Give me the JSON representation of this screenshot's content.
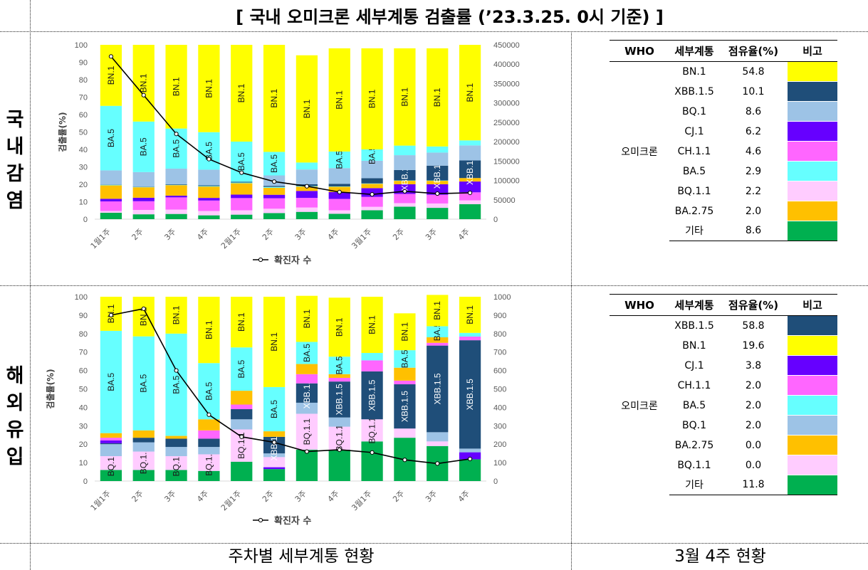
{
  "title": "[ 국내 오미크론 세부계통 검출률 (’23.3.25. 0시 기준) ]",
  "side_domestic": [
    "국",
    "내",
    "감",
    "염"
  ],
  "side_overseas": [
    "해",
    "외",
    "유",
    "입"
  ],
  "footer_left": "주차별 세부계통 현황",
  "footer_right": "3월 4주 현황",
  "colors": {
    "BN.1": "#FFFF00",
    "XBB.1.5": "#1F4E79",
    "BQ.1": "#9DC3E6",
    "CJ.1": "#6600FF",
    "CH.1.1": "#FF66FF",
    "BA.5": "#66FFFF",
    "BQ.1.1": "#FFCCFF",
    "BA.2.75": "#FFC000",
    "기타": "#00B050"
  },
  "table_headers": {
    "who": "WHO",
    "lineage": "세부계통",
    "share": "점유율(%)",
    "note": "비고"
  },
  "domestic_table": {
    "who": "오미크론",
    "rows": [
      {
        "lineage": "BN.1",
        "share": "54.8"
      },
      {
        "lineage": "XBB.1.5",
        "share": "10.1"
      },
      {
        "lineage": "BQ.1",
        "share": "8.6"
      },
      {
        "lineage": "CJ.1",
        "share": "6.2"
      },
      {
        "lineage": "CH.1.1",
        "share": "4.6"
      },
      {
        "lineage": "BA.5",
        "share": "2.9"
      },
      {
        "lineage": "BQ.1.1",
        "share": "2.2"
      },
      {
        "lineage": "BA.2.75",
        "share": "2.0"
      },
      {
        "lineage": "기타",
        "share": "8.6"
      }
    ]
  },
  "overseas_table": {
    "who": "오미크론",
    "rows": [
      {
        "lineage": "XBB.1.5",
        "share": "58.8"
      },
      {
        "lineage": "BN.1",
        "share": "19.6"
      },
      {
        "lineage": "CJ.1",
        "share": "3.8"
      },
      {
        "lineage": "CH.1.1",
        "share": "2.0"
      },
      {
        "lineage": "BA.5",
        "share": "2.0"
      },
      {
        "lineage": "BQ.1",
        "share": "2.0"
      },
      {
        "lineage": "BA.2.75",
        "share": "0.0"
      },
      {
        "lineage": "BQ.1.1",
        "share": "0.0"
      },
      {
        "lineage": "기타",
        "share": "11.8"
      }
    ]
  },
  "chart_data": [
    {
      "type": "bar",
      "stacked": true,
      "categories": [
        "1월1주",
        "2주",
        "3주",
        "4주",
        "2월1주",
        "2주",
        "3주",
        "4주",
        "3월1주",
        "2주",
        "3주",
        "4주"
      ],
      "ylabel": "검출률(%)",
      "ylim": [
        0,
        100
      ],
      "y2lim": [
        0,
        450000
      ],
      "y2ticks": [
        0,
        50000,
        100000,
        150000,
        200000,
        250000,
        300000,
        350000,
        400000,
        450000
      ],
      "legend": "확진자 수",
      "legend_position": "bottom",
      "series": [
        {
          "name": "기타",
          "values": [
            3.7,
            2.8,
            3.0,
            2.2,
            2.6,
            3.5,
            4.2,
            3.1,
            5.1,
            7.2,
            6.5,
            8.6
          ]
        },
        {
          "name": "BQ.1.1",
          "values": [
            1.0,
            2.5,
            2.5,
            2.5,
            2.5,
            2.5,
            2.5,
            2.0,
            2.0,
            2.0,
            2.5,
            2.2
          ]
        },
        {
          "name": "CH.1.1",
          "values": [
            5.5,
            5.0,
            7.0,
            6.0,
            7.0,
            6.0,
            5.5,
            6.5,
            5.7,
            5.3,
            5.0,
            4.6
          ]
        },
        {
          "name": "CJ.1",
          "values": [
            1.5,
            2.0,
            1.0,
            1.5,
            2.0,
            2.0,
            4.0,
            4.0,
            5.0,
            5.5,
            6.0,
            6.2
          ]
        },
        {
          "name": "BA.2.75",
          "values": [
            7.7,
            6.0,
            6.0,
            6.5,
            6.5,
            4.0,
            2.5,
            3.0,
            2.5,
            2.0,
            2.0,
            2.0
          ]
        },
        {
          "name": "BA.5",
          "values": [
            0.3,
            0.2,
            0.2,
            0.3,
            0.4,
            0.5,
            0.3,
            0.2,
            0.2,
            0.2,
            0.2,
            0.0
          ]
        },
        {
          "name": "XBB.1.5",
          "values": [
            0.1,
            0.2,
            0.3,
            0.4,
            0.5,
            0.6,
            1.0,
            1.5,
            3.0,
            6.0,
            8.5,
            10.1
          ]
        },
        {
          "name": "BQ.1",
          "values": [
            8.2,
            8.3,
            9.0,
            9.0,
            0.0,
            6.0,
            8.5,
            9.0,
            10.0,
            8.5,
            7.5,
            8.6
          ]
        },
        {
          "name": "BA.5",
          "values": [
            37.0,
            29.0,
            23.0,
            21.5,
            23.0,
            13.5,
            4.0,
            9.5,
            6.5,
            5.5,
            3.5,
            2.9
          ]
        },
        {
          "name": "BN.1",
          "values": [
            35.0,
            44.0,
            48.0,
            50.1,
            55.5,
            61.4,
            61.5,
            59.2,
            58.0,
            55.8,
            56.3,
            54.8
          ]
        }
      ],
      "line": {
        "name": "확진자 수",
        "values": [
          420000,
          320000,
          220000,
          155000,
          120000,
          97000,
          85000,
          70000,
          64000,
          72000,
          66000,
          68000
        ]
      }
    },
    {
      "type": "bar",
      "stacked": true,
      "categories": [
        "1월1주",
        "2주",
        "3주",
        "4주",
        "2월1주",
        "2주",
        "3주",
        "4주",
        "3월1주",
        "2주",
        "3주",
        "4주"
      ],
      "ylabel": "검출률(%)",
      "ylim": [
        0,
        100
      ],
      "y2lim": [
        0,
        1000
      ],
      "y2ticks": [
        0,
        100,
        200,
        300,
        400,
        500,
        600,
        700,
        800,
        900,
        1000
      ],
      "legend": "확진자 수",
      "legend_position": "bottom",
      "series": [
        {
          "name": "기타",
          "values": [
            6,
            6,
            6,
            5.5,
            10.5,
            6.5,
            17,
            17,
            21.5,
            23.5,
            19,
            11.8
          ]
        },
        {
          "name": "CJ.1",
          "values": [
            0,
            0,
            0,
            0,
            0,
            1,
            0,
            0,
            0,
            0,
            0,
            3.8
          ]
        },
        {
          "name": "BQ.1.1",
          "values": [
            7.5,
            10,
            7.5,
            9,
            17.5,
            5.5,
            19.5,
            12.5,
            12,
            5,
            2.5,
            0
          ]
        },
        {
          "name": "BQ.1",
          "values": [
            6.5,
            5,
            5,
            4,
            5.5,
            2,
            6,
            5,
            0,
            0,
            5,
            2
          ]
        },
        {
          "name": "XBB.1.5",
          "values": [
            0.5,
            2.5,
            4.5,
            4.5,
            5.5,
            9,
            10.5,
            19.5,
            26,
            24,
            47,
            58.8
          ]
        },
        {
          "name": "CJ.1",
          "values": [
            1.5,
            0,
            0,
            0,
            0,
            0,
            0,
            0,
            0,
            0,
            0,
            0
          ]
        },
        {
          "name": "CH.1.1",
          "values": [
            1.5,
            0,
            0,
            4.5,
            2.5,
            0,
            5,
            2,
            6,
            2,
            1.5,
            2
          ]
        },
        {
          "name": "BA.2.75",
          "values": [
            2.5,
            4,
            1.5,
            6,
            7.5,
            3,
            5.5,
            2,
            0,
            7,
            3,
            0
          ]
        },
        {
          "name": "BA.5",
          "values": [
            55.5,
            51,
            55.5,
            30.5,
            23.5,
            24,
            12,
            9.5,
            4,
            9.5,
            6,
            2
          ]
        },
        {
          "name": "BN.1",
          "values": [
            18.5,
            21.5,
            20,
            36,
            27.5,
            49,
            25,
            32,
            30.5,
            20,
            17,
            19.6
          ]
        }
      ],
      "line": {
        "name": "확진자 수",
        "values": [
          900,
          935,
          600,
          360,
          240,
          210,
          160,
          170,
          155,
          115,
          95,
          120
        ]
      }
    }
  ]
}
